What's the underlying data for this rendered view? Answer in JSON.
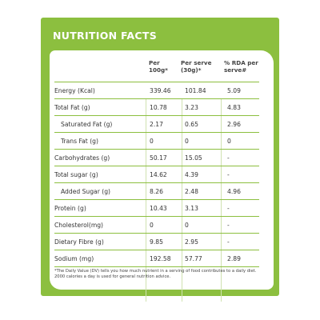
{
  "title": "NUTRITION FACTS",
  "headers": {
    "per100": "Per 100g*",
    "perServe": "Per serve (30g)*",
    "rda": "% RDA per serve#"
  },
  "rows": [
    {
      "label": "Energy (Kcal)",
      "per100": "339.46",
      "perServe": "101.84",
      "rda": "5.09",
      "indent": false
    },
    {
      "label": "Total Fat (g)",
      "per100": "10.78",
      "perServe": "3.23",
      "rda": "4.83",
      "indent": false
    },
    {
      "label": "Saturated Fat (g)",
      "per100": "2.17",
      "perServe": "0.65",
      "rda": "2.96",
      "indent": true
    },
    {
      "label": "Trans Fat (g)",
      "per100": "0",
      "perServe": "0",
      "rda": "0",
      "indent": true
    },
    {
      "label": "Carbohydrates (g)",
      "per100": "50.17",
      "perServe": "15.05",
      "rda": "-",
      "indent": false
    },
    {
      "label": "Total sugar (g)",
      "per100": "14.62",
      "perServe": "4.39",
      "rda": "-",
      "indent": false
    },
    {
      "label": "Added Sugar (g)",
      "per100": "8.26",
      "perServe": "2.48",
      "rda": "4.96",
      "indent": true
    },
    {
      "label": "Protein (g)",
      "per100": "10.43",
      "perServe": "3.13",
      "rda": "-",
      "indent": false
    },
    {
      "label": "Cholesterol(mg)",
      "per100": "0",
      "perServe": "0",
      "rda": "-",
      "indent": false
    },
    {
      "label": "Dietary Fibre (g)",
      "per100": "9.85",
      "perServe": "2.95",
      "rda": "-",
      "indent": false
    },
    {
      "label": "Sodium (mg)",
      "per100": "192.58",
      "perServe": "57.77",
      "rda": "2.89",
      "indent": false
    }
  ],
  "footnote": "*The Daily Value (DV) tells you how much nutrient in a serving of food contributes to a daily diet. 2000 calories a day is used for general nutrition advice.",
  "colors": {
    "brand_green": "#8cbf3f",
    "text": "#333333"
  }
}
